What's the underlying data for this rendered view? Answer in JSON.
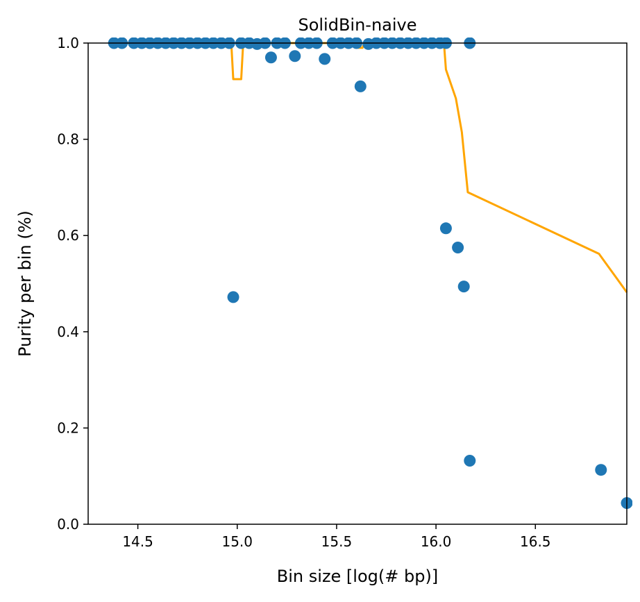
{
  "chart_data": {
    "type": "scatter",
    "title": "SolidBin-naive",
    "xlabel": "Bin size [log(# bp)]",
    "ylabel": "Purity per bin (%)",
    "xlim": [
      14.25,
      16.96
    ],
    "ylim": [
      0.0,
      1.0
    ],
    "xticks": [
      14.5,
      15.0,
      15.5,
      16.0,
      16.5
    ],
    "xtick_labels": [
      "14.5",
      "15.0",
      "15.5",
      "16.0",
      "16.5"
    ],
    "yticks": [
      0.0,
      0.2,
      0.4,
      0.6,
      0.8,
      1.0
    ],
    "ytick_labels": [
      "0.0",
      "0.2",
      "0.4",
      "0.6",
      "0.8",
      "1.0"
    ],
    "grid": false,
    "colors": {
      "points": "#1f77b4",
      "line": "#ffa500"
    },
    "series": [
      {
        "type": "scatter",
        "points": [
          [
            14.38,
            1.0
          ],
          [
            14.42,
            1.0
          ],
          [
            14.48,
            1.0
          ],
          [
            14.52,
            1.0
          ],
          [
            14.56,
            1.0
          ],
          [
            14.6,
            1.0
          ],
          [
            14.64,
            1.0
          ],
          [
            14.68,
            1.0
          ],
          [
            14.72,
            1.0
          ],
          [
            14.76,
            1.0
          ],
          [
            14.8,
            1.0
          ],
          [
            14.84,
            1.0
          ],
          [
            14.88,
            1.0
          ],
          [
            14.92,
            1.0
          ],
          [
            14.96,
            1.0
          ],
          [
            14.98,
            0.472
          ],
          [
            15.02,
            1.0
          ],
          [
            15.06,
            1.0
          ],
          [
            15.1,
            0.998
          ],
          [
            15.14,
            1.0
          ],
          [
            15.17,
            0.97
          ],
          [
            15.2,
            1.0
          ],
          [
            15.24,
            1.0
          ],
          [
            15.29,
            0.973
          ],
          [
            15.32,
            1.0
          ],
          [
            15.36,
            1.0
          ],
          [
            15.4,
            1.0
          ],
          [
            15.44,
            0.967
          ],
          [
            15.48,
            1.0
          ],
          [
            15.52,
            1.0
          ],
          [
            15.56,
            1.0
          ],
          [
            15.6,
            1.0
          ],
          [
            15.62,
            0.91
          ],
          [
            15.66,
            0.998
          ],
          [
            15.7,
            1.0
          ],
          [
            15.74,
            1.0
          ],
          [
            15.78,
            1.0
          ],
          [
            15.82,
            1.0
          ],
          [
            15.86,
            1.0
          ],
          [
            15.9,
            1.0
          ],
          [
            15.94,
            1.0
          ],
          [
            15.98,
            1.0
          ],
          [
            16.02,
            1.0
          ],
          [
            16.05,
            1.0
          ],
          [
            16.05,
            0.615
          ],
          [
            16.11,
            0.575
          ],
          [
            16.14,
            0.494
          ],
          [
            16.17,
            1.0
          ],
          [
            16.17,
            0.132
          ],
          [
            16.83,
            0.113
          ],
          [
            16.96,
            0.044
          ]
        ]
      },
      {
        "type": "line",
        "points": [
          [
            14.38,
            1.0
          ],
          [
            14.97,
            1.0
          ],
          [
            14.98,
            0.925
          ],
          [
            15.02,
            0.925
          ],
          [
            15.03,
            1.0
          ],
          [
            15.6,
            1.0
          ],
          [
            15.61,
            0.99
          ],
          [
            15.63,
            0.99
          ],
          [
            15.64,
            1.0
          ],
          [
            16.04,
            1.0
          ],
          [
            16.05,
            0.945
          ],
          [
            16.1,
            0.885
          ],
          [
            16.13,
            0.815
          ],
          [
            16.16,
            0.69
          ],
          [
            16.82,
            0.562
          ],
          [
            16.96,
            0.482
          ]
        ]
      }
    ]
  }
}
